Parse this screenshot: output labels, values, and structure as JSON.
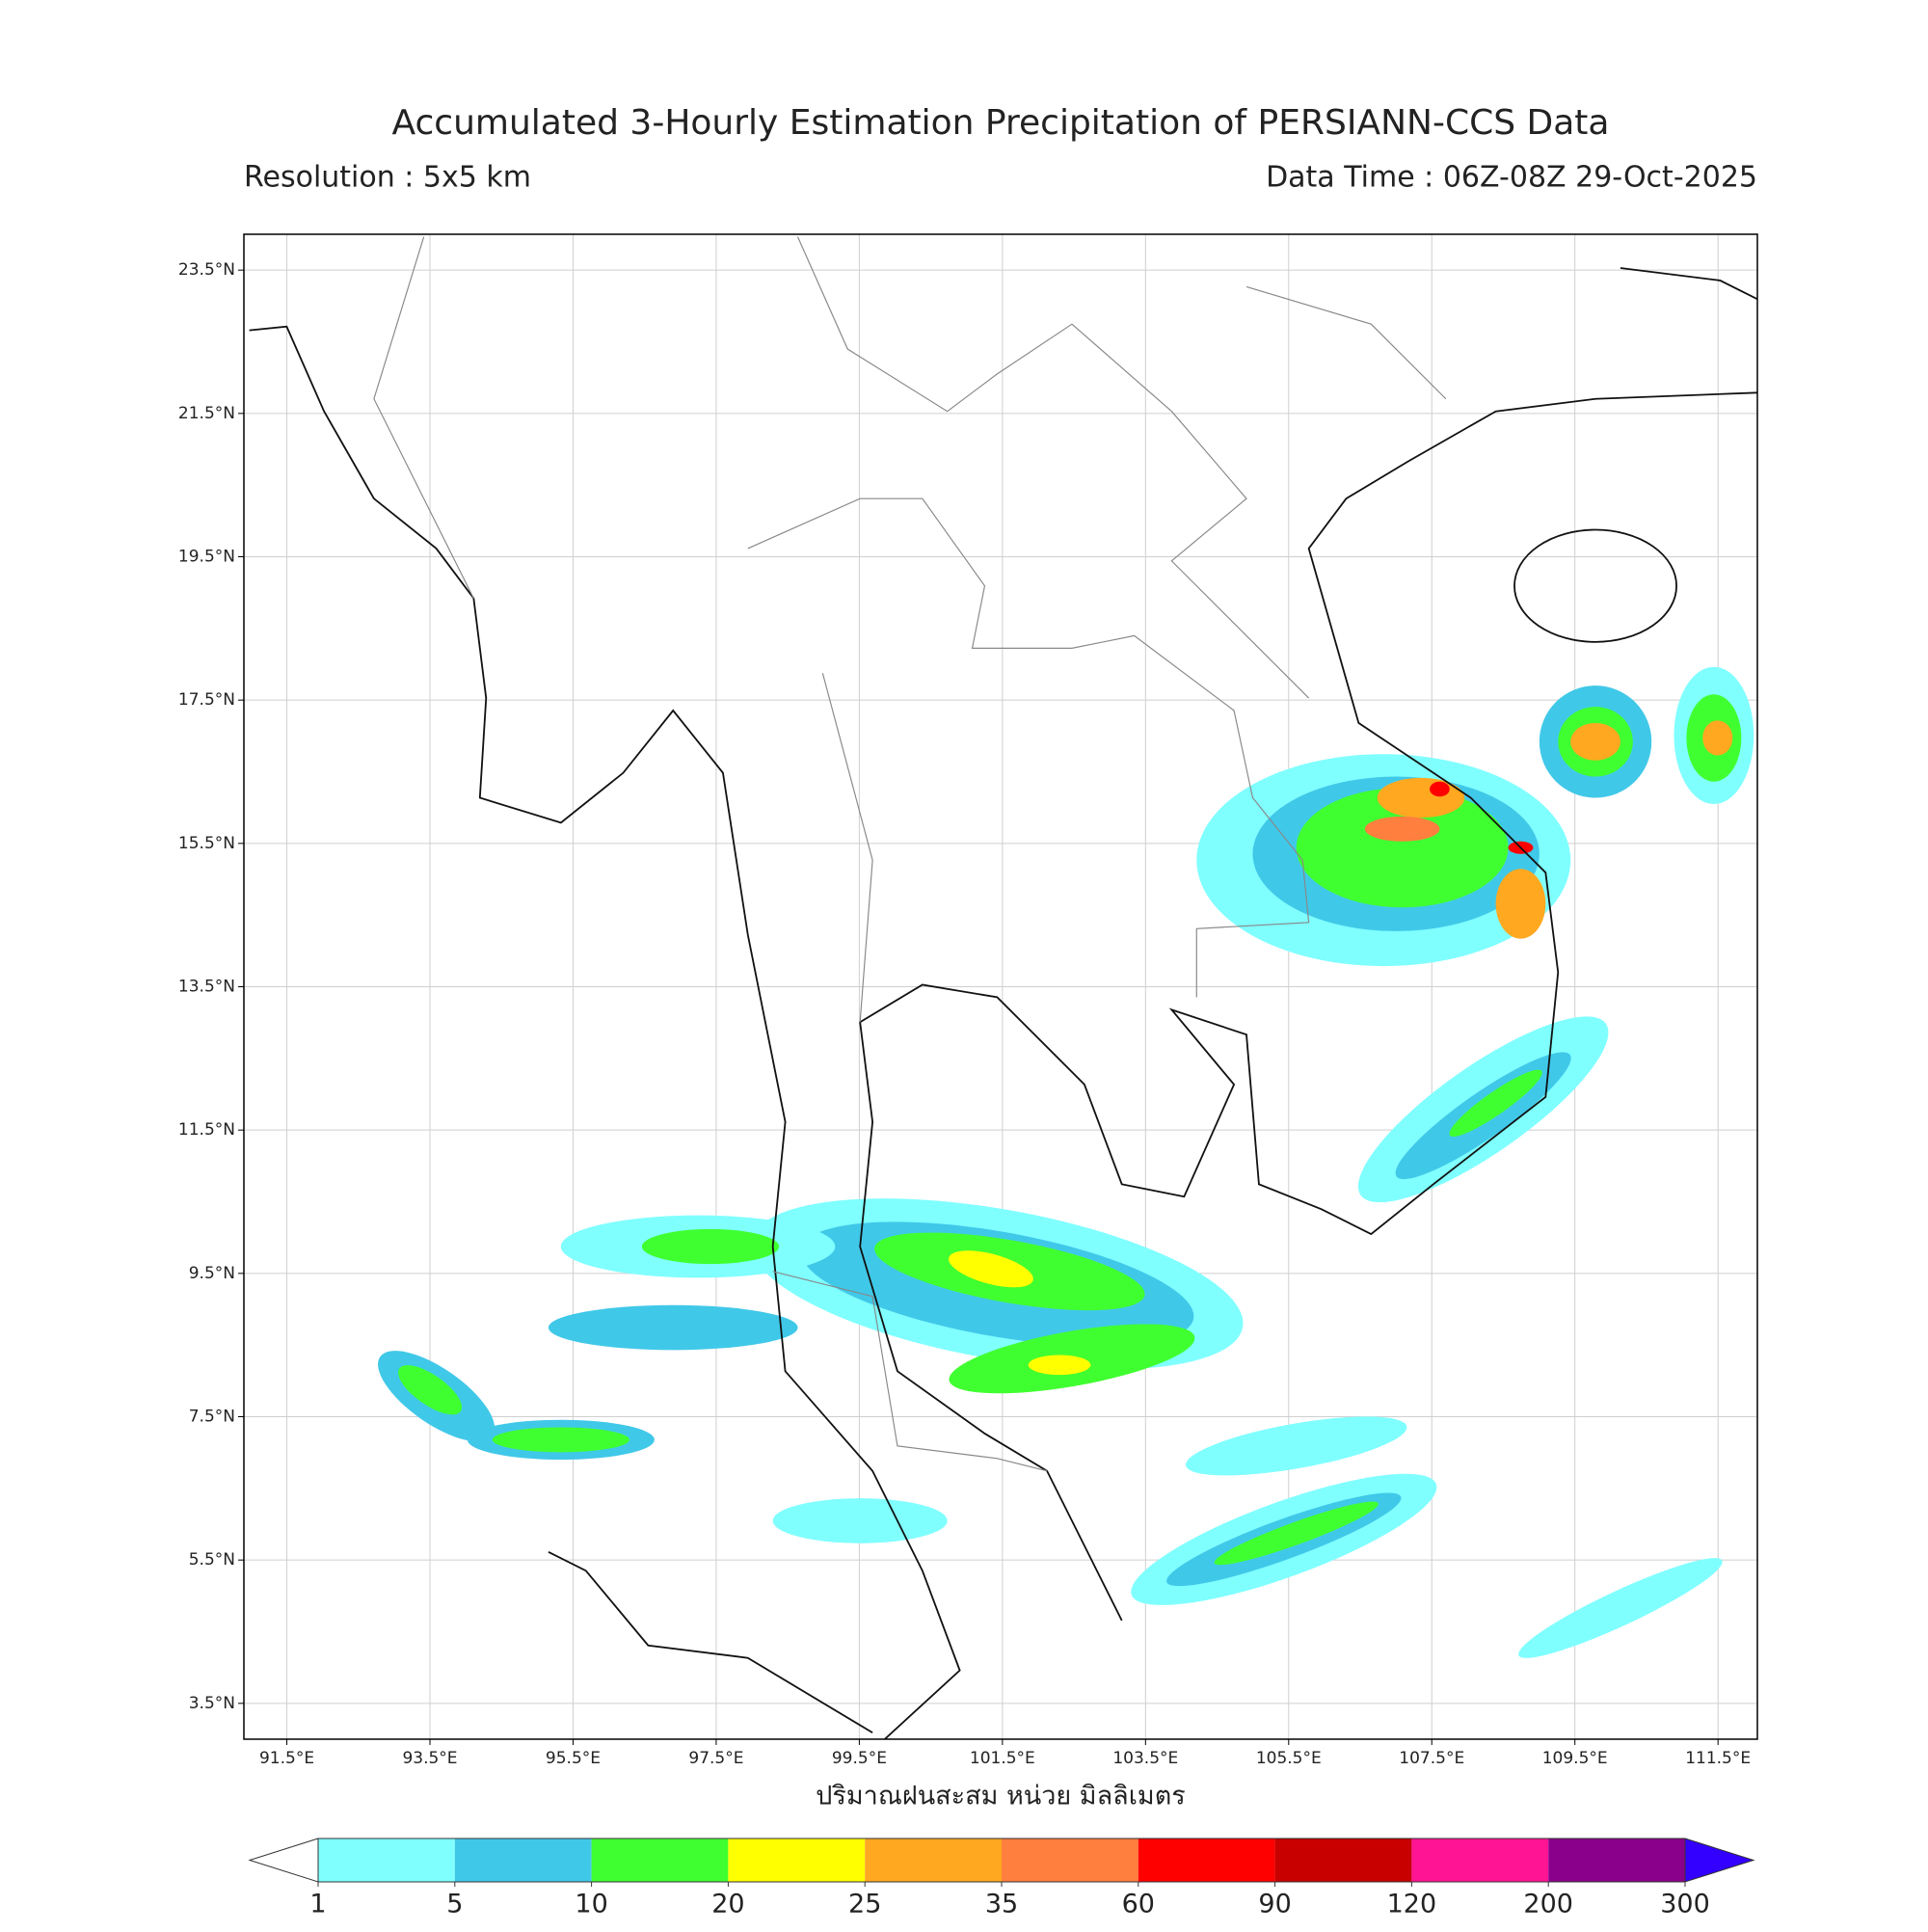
{
  "title": "Accumulated 3-Hourly Estimation Precipitation of PERSIANN-CCS Data",
  "resolution": "Resolution : 5x5 km",
  "data_time": "Data Time : 06Z-08Z 29-Oct-2025",
  "map": {
    "xlim": [
      90.9,
      112.05
    ],
    "ylim": [
      3.0,
      24.0
    ],
    "grid": true,
    "xticks": [
      {
        "value": 91.5,
        "label": "91.5°E"
      },
      {
        "value": 93.5,
        "label": "93.5°E"
      },
      {
        "value": 95.5,
        "label": "95.5°E"
      },
      {
        "value": 97.5,
        "label": "97.5°E"
      },
      {
        "value": 99.5,
        "label": "99.5°E"
      },
      {
        "value": 101.5,
        "label": "101.5°E"
      },
      {
        "value": 103.5,
        "label": "103.5°E"
      },
      {
        "value": 105.5,
        "label": "105.5°E"
      },
      {
        "value": 107.5,
        "label": "107.5°E"
      },
      {
        "value": 109.5,
        "label": "109.5°E"
      },
      {
        "value": 111.5,
        "label": "111.5°E"
      }
    ],
    "yticks": [
      {
        "value": 3.5,
        "label": "3.5°N"
      },
      {
        "value": 5.5,
        "label": "5.5°N"
      },
      {
        "value": 7.5,
        "label": "7.5°N"
      },
      {
        "value": 9.5,
        "label": "9.5°N"
      },
      {
        "value": 11.5,
        "label": "11.5°N"
      },
      {
        "value": 13.5,
        "label": "13.5°N"
      },
      {
        "value": 15.5,
        "label": "15.5°N"
      },
      {
        "value": 17.5,
        "label": "17.5°N"
      },
      {
        "value": 19.5,
        "label": "19.5°N"
      },
      {
        "value": 21.5,
        "label": "21.5°N"
      },
      {
        "value": 23.5,
        "label": "23.5°N"
      }
    ]
  },
  "colorbar": {
    "label": "ปริมาณฝนสะสม หน่วย มิลลิเมตร",
    "levels": [
      1,
      5,
      10,
      20,
      25,
      35,
      60,
      90,
      120,
      200,
      300
    ],
    "colors": [
      "#80ffff",
      "#40c8e8",
      "#40ff30",
      "#ffff00",
      "#ffa820",
      "#ff7f3f",
      "#ff0000",
      "#c80000",
      "#ff1493",
      "#8b008b"
    ],
    "under_color": "#ffffff",
    "over_color": "#3300ff"
  }
}
